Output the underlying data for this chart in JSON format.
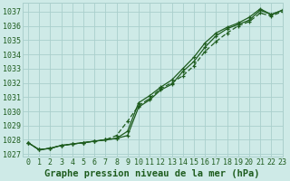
{
  "title": "Graphe pression niveau de la mer (hPa)",
  "bg_color": "#ceeae7",
  "grid_color": "#aacfcc",
  "line_color": "#1e5c1e",
  "xlim": [
    -0.5,
    23
  ],
  "ylim": [
    1026.8,
    1037.6
  ],
  "yticks": [
    1027,
    1028,
    1029,
    1030,
    1031,
    1032,
    1033,
    1034,
    1035,
    1036,
    1037
  ],
  "xticks": [
    0,
    1,
    2,
    3,
    4,
    5,
    6,
    7,
    8,
    9,
    10,
    11,
    12,
    13,
    14,
    15,
    16,
    17,
    18,
    19,
    20,
    21,
    22,
    23
  ],
  "series1": [
    1027.8,
    1027.3,
    1027.4,
    1027.6,
    1027.7,
    1027.8,
    1027.9,
    1028.0,
    1028.1,
    1028.3,
    1030.3,
    1030.8,
    1031.5,
    1031.9,
    1032.8,
    1033.5,
    1034.5,
    1035.3,
    1035.8,
    1036.1,
    1036.4,
    1037.1,
    1036.8,
    1037.1
  ],
  "series2": [
    1027.8,
    1027.3,
    1027.4,
    1027.6,
    1027.7,
    1027.8,
    1027.9,
    1028.0,
    1028.1,
    1028.6,
    1030.6,
    1031.1,
    1031.7,
    1032.2,
    1033.0,
    1033.8,
    1034.8,
    1035.5,
    1035.9,
    1036.2,
    1036.6,
    1037.2,
    1036.8,
    1037.1
  ],
  "series3": [
    1027.8,
    1027.3,
    1027.4,
    1027.6,
    1027.7,
    1027.8,
    1027.9,
    1028.0,
    1028.3,
    1029.3,
    1030.4,
    1030.9,
    1031.6,
    1032.0,
    1032.5,
    1033.2,
    1034.2,
    1034.9,
    1035.5,
    1036.0,
    1036.3,
    1036.9,
    1036.7,
    1037.0
  ],
  "marker": "+",
  "markersize": 3,
  "linewidth": 0.9,
  "title_fontsize": 7.5,
  "tick_fontsize": 6.0
}
